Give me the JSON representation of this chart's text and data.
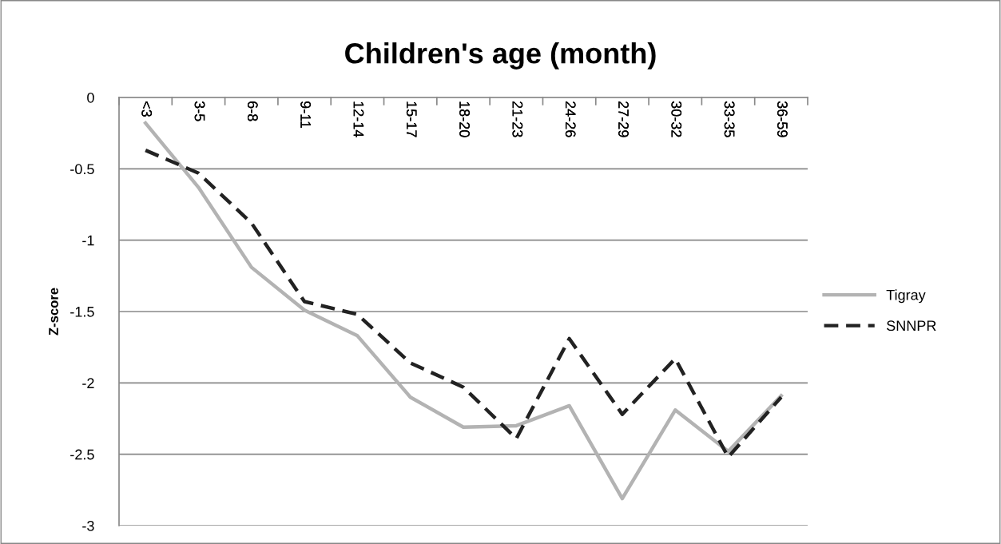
{
  "chart_data": {
    "type": "line",
    "title": "Children's age (month)",
    "ylabel": "Z-score",
    "categories": [
      "<3",
      "3-5",
      "6-8",
      "9-11",
      "12-14",
      "15-17",
      "18-20",
      "21-23",
      "24-26",
      "27-29",
      "30-32",
      "33-35",
      "36-59"
    ],
    "series": [
      {
        "name": "Tigray",
        "color": "#b3b3b3",
        "line_style": "solid",
        "values": [
          -0.18,
          -0.63,
          -1.19,
          -1.49,
          -1.67,
          -2.1,
          -2.31,
          -2.3,
          -2.16,
          -2.81,
          -2.19,
          -2.48,
          -2.09
        ]
      },
      {
        "name": "SNNPR",
        "color": "#222222",
        "line_style": "dashed",
        "values": [
          -0.37,
          -0.53,
          -0.88,
          -1.43,
          -1.52,
          -1.86,
          -2.03,
          -2.39,
          -1.69,
          -2.22,
          -1.83,
          -2.52,
          -2.1
        ]
      }
    ],
    "ylim": [
      -3,
      0
    ],
    "yticks": [
      0,
      -0.5,
      -1,
      -1.5,
      -2,
      -2.5,
      -3
    ],
    "grid": "y",
    "legend": "right",
    "marker": "none"
  }
}
